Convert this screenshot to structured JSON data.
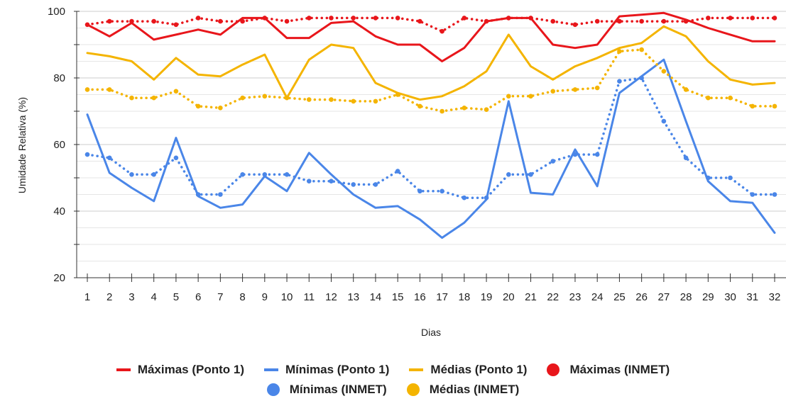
{
  "chart_data": {
    "type": "line",
    "title": "",
    "xlabel": "Dias",
    "ylabel": "Umidade Relativa (%)",
    "ylim": [
      20,
      100
    ],
    "yticks": [
      "20",
      "40",
      "60",
      "80",
      "100"
    ],
    "categories": [
      "1",
      "2",
      "3",
      "4",
      "5",
      "6",
      "7",
      "8",
      "9",
      "10",
      "11",
      "12",
      "13",
      "14",
      "15",
      "16",
      "17",
      "18",
      "19",
      "20",
      "21",
      "22",
      "23",
      "24",
      "25",
      "26",
      "27",
      "28",
      "29",
      "30",
      "31",
      "32"
    ],
    "grid": true,
    "legend_position": "bottom",
    "series": [
      {
        "name": "Máximas (Ponto 1)",
        "color": "#e8161b",
        "style": "solid",
        "values": [
          96,
          92.5,
          96.5,
          91.5,
          93,
          94.5,
          93,
          98,
          98,
          92,
          92,
          96.5,
          97,
          92.5,
          90,
          90,
          85,
          89,
          97,
          98,
          98,
          90,
          89,
          90,
          98.5,
          99,
          99.5,
          97.5,
          95,
          93,
          91,
          91
        ]
      },
      {
        "name": "Mínimas (Ponto 1)",
        "color": "#4a86e8",
        "style": "solid",
        "values": [
          69,
          51.5,
          47,
          43,
          62,
          44.5,
          41,
          42,
          50.5,
          46,
          57.5,
          51,
          45,
          41,
          41.5,
          37.5,
          32,
          36.5,
          43.5,
          73,
          45.5,
          45,
          58.5,
          47.5,
          75.5,
          80.5,
          85.5,
          67,
          49,
          43,
          42.5,
          33.5
        ]
      },
      {
        "name": "Médias (Ponto 1)",
        "color": "#f4b400",
        "style": "solid",
        "values": [
          87.5,
          86.5,
          85,
          79.5,
          86,
          81,
          80.5,
          84,
          87,
          74,
          85.5,
          90,
          89,
          78.5,
          75.5,
          73.5,
          74.5,
          77.5,
          82,
          93,
          83.5,
          79.5,
          83.5,
          86,
          89,
          90.5,
          95.5,
          92.5,
          85,
          79.5,
          78,
          78.5
        ]
      },
      {
        "name": "Máximas (INMET)",
        "color": "#e8161b",
        "style": "dotted",
        "values": [
          96,
          97,
          97,
          97,
          96,
          98,
          97,
          97,
          98,
          97,
          98,
          98,
          98,
          98,
          98,
          97,
          94,
          98,
          97,
          98,
          98,
          97,
          96,
          97,
          97,
          97,
          97,
          97,
          98,
          98,
          98,
          98
        ]
      },
      {
        "name": "Mínimas (INMET)",
        "color": "#4a86e8",
        "style": "dotted",
        "values": [
          57,
          56,
          51,
          51,
          56,
          45,
          45,
          51,
          51,
          51,
          49,
          49,
          48,
          48,
          52,
          46,
          46,
          44,
          44,
          51,
          51,
          55,
          57,
          57,
          79,
          80,
          67,
          56,
          50,
          50,
          45,
          45
        ]
      },
      {
        "name": "Médias (INMET)",
        "color": "#f4b400",
        "style": "dotted",
        "values": [
          76.5,
          76.5,
          74,
          74,
          76,
          71.5,
          71,
          74,
          74.5,
          74,
          73.5,
          73.5,
          73,
          73,
          75,
          71.5,
          70,
          71,
          70.5,
          74.5,
          74.5,
          76,
          76.5,
          77,
          88,
          88.5,
          82,
          76.5,
          74,
          74,
          71.5,
          71.5
        ]
      }
    ]
  }
}
